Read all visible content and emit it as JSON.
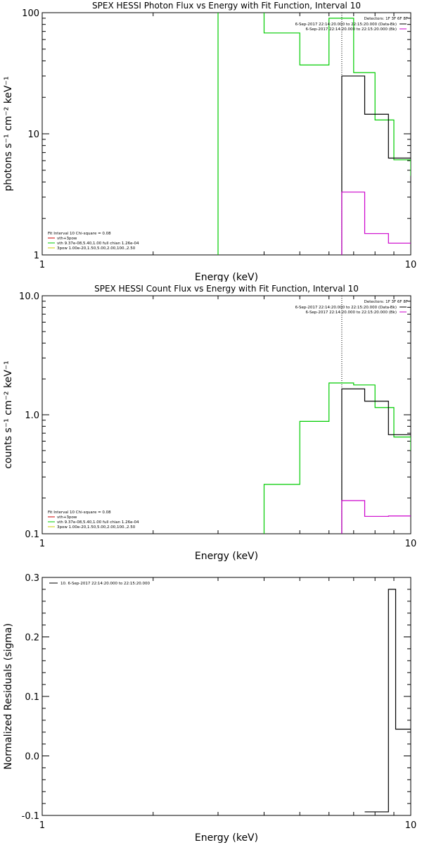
{
  "chart_data": [
    {
      "type": "line",
      "title": "SPEX HESSI Photon Flux vs Energy with Fit Function, Interval 10",
      "xlabel": "Energy (keV)",
      "ylabel": "photons s⁻¹ cm⁻² keV⁻¹",
      "xscale": "log",
      "yscale": "log",
      "xlim": [
        1,
        10
      ],
      "ylim": [
        1,
        100
      ],
      "xticks": [
        {
          "value": 1,
          "label": "1"
        },
        {
          "value": 10,
          "label": "10"
        }
      ],
      "yticks": [
        {
          "value": 1,
          "label": "1"
        },
        {
          "value": 10,
          "label": "10"
        },
        {
          "value": 100,
          "label": "100"
        }
      ],
      "vline_x": 6.5,
      "legend_top": {
        "header": "Detectors: 1F 3F 6F 8F",
        "entries": [
          {
            "label": "6-Sep-2017 22:14:20.000 to 22:15:20.000 (Data-Bk)",
            "color": "#000000"
          },
          {
            "label": "6-Sep-2017 22:14:20.000 to 22:15:20.000 (Bk)",
            "color": "#cc00cc"
          }
        ]
      },
      "legend_bottom": {
        "header": "Fit Interval 10   Chi-square = 0.08",
        "entries": [
          {
            "label": "vth+3pow",
            "color": "#cc0000"
          },
          {
            "label": "vth 9.37e-08,5.40,1.00  full chian 1.26e-04",
            "color": "#00cc00"
          },
          {
            "label": "3pow 1.00e-20,1.50,5.00,2.00,100.,2.50",
            "color": "#cccc00"
          }
        ]
      },
      "series": [
        {
          "color": "#00cc00",
          "edges": [
            1.0,
            3.0,
            4.0,
            5.0,
            6.0,
            7.0,
            8.0,
            9.0,
            10.0
          ],
          "values": [
            0.5,
            400,
            68,
            37,
            90,
            32,
            13,
            6.1,
            4.5
          ],
          "anchor_low": 0.5
        },
        {
          "color": "#000000",
          "edges": [
            6.5,
            7.5,
            8.7,
            10.0
          ],
          "values": [
            30,
            14.5,
            6.3
          ],
          "anchor_low": 0.5
        },
        {
          "color": "#cc00cc",
          "edges": [
            6.5,
            7.5,
            8.7,
            10.0
          ],
          "values": [
            3.3,
            1.5,
            1.25
          ],
          "anchor_low": 0.5
        }
      ]
    },
    {
      "type": "line",
      "title": "SPEX HESSI Count Flux vs Energy with Fit Function, Interval 10",
      "xlabel": "Energy (keV)",
      "ylabel": "counts s⁻¹ cm⁻² keV⁻¹",
      "xscale": "log",
      "yscale": "log",
      "xlim": [
        1,
        10
      ],
      "ylim": [
        0.1,
        10
      ],
      "xticks": [
        {
          "value": 1,
          "label": "1"
        },
        {
          "value": 10,
          "label": "10"
        }
      ],
      "yticks": [
        {
          "value": 0.1,
          "label": "0.1"
        },
        {
          "value": 1,
          "label": "1.0"
        },
        {
          "value": 10,
          "label": "10.0"
        }
      ],
      "vline_x": 6.5,
      "legend_top": {
        "header": "Detectors: 1F 3F 6F 8F",
        "entries": [
          {
            "label": "6-Sep-2017 22:14:20.000 to 22:15:20.000 (Data-Bk)",
            "color": "#000000"
          },
          {
            "label": "6-Sep-2017 22:14:20.000 to 22:15:20.000 (Bk)",
            "color": "#cc00cc"
          }
        ]
      },
      "legend_bottom": {
        "header": "Fit Interval 10   Chi-square = 0.08",
        "entries": [
          {
            "label": "vth+3pow",
            "color": "#cc0000"
          },
          {
            "label": "vth 9.37e-08,5.40,1.00  full chian 1.26e-04",
            "color": "#00cc00"
          },
          {
            "label": "3pow 1.00e-20,1.50,5.00,2.00,100.,2.50",
            "color": "#cccc00"
          }
        ]
      },
      "series": [
        {
          "color": "#00cc00",
          "edges": [
            1.0,
            4.0,
            5.0,
            6.0,
            7.0,
            8.0,
            9.0,
            10.0
          ],
          "values": [
            0.05,
            0.26,
            0.88,
            1.85,
            1.78,
            1.15,
            0.65,
            0.5
          ],
          "anchor_low": 0.05
        },
        {
          "color": "#000000",
          "edges": [
            6.5,
            7.5,
            8.7,
            10.0
          ],
          "values": [
            1.65,
            1.3,
            0.68
          ],
          "anchor_low": 0.05
        },
        {
          "color": "#cc00cc",
          "edges": [
            6.5,
            7.5,
            8.7,
            10.0
          ],
          "values": [
            0.19,
            0.14,
            0.141
          ],
          "anchor_low": 0.05
        }
      ]
    },
    {
      "type": "line",
      "title": "",
      "xlabel": "Energy (keV)",
      "ylabel": "Normalized Residuals (sigma)",
      "xscale": "log",
      "yscale": "linear",
      "xlim": [
        1,
        10
      ],
      "ylim": [
        -0.1,
        0.3
      ],
      "xticks": [
        {
          "value": 1,
          "label": "1"
        },
        {
          "value": 10,
          "label": "10"
        }
      ],
      "yticks": [
        {
          "value": -0.1,
          "label": "-0.1"
        },
        {
          "value": 0.0,
          "label": "0.0"
        },
        {
          "value": 0.1,
          "label": "0.1"
        },
        {
          "value": 0.2,
          "label": "0.2"
        },
        {
          "value": 0.3,
          "label": "0.3"
        }
      ],
      "legend_top": {
        "header": "",
        "entries": [
          {
            "label": "10.  6-Sep-2017 22:14:20.000 to 22:15:20.000",
            "color": "#000000"
          }
        ]
      },
      "series": [
        {
          "color": "#000000",
          "edges": [
            7.5,
            8.7,
            9.1,
            10.0
          ],
          "values": [
            -0.094,
            0.28,
            0.045
          ]
        }
      ]
    }
  ]
}
